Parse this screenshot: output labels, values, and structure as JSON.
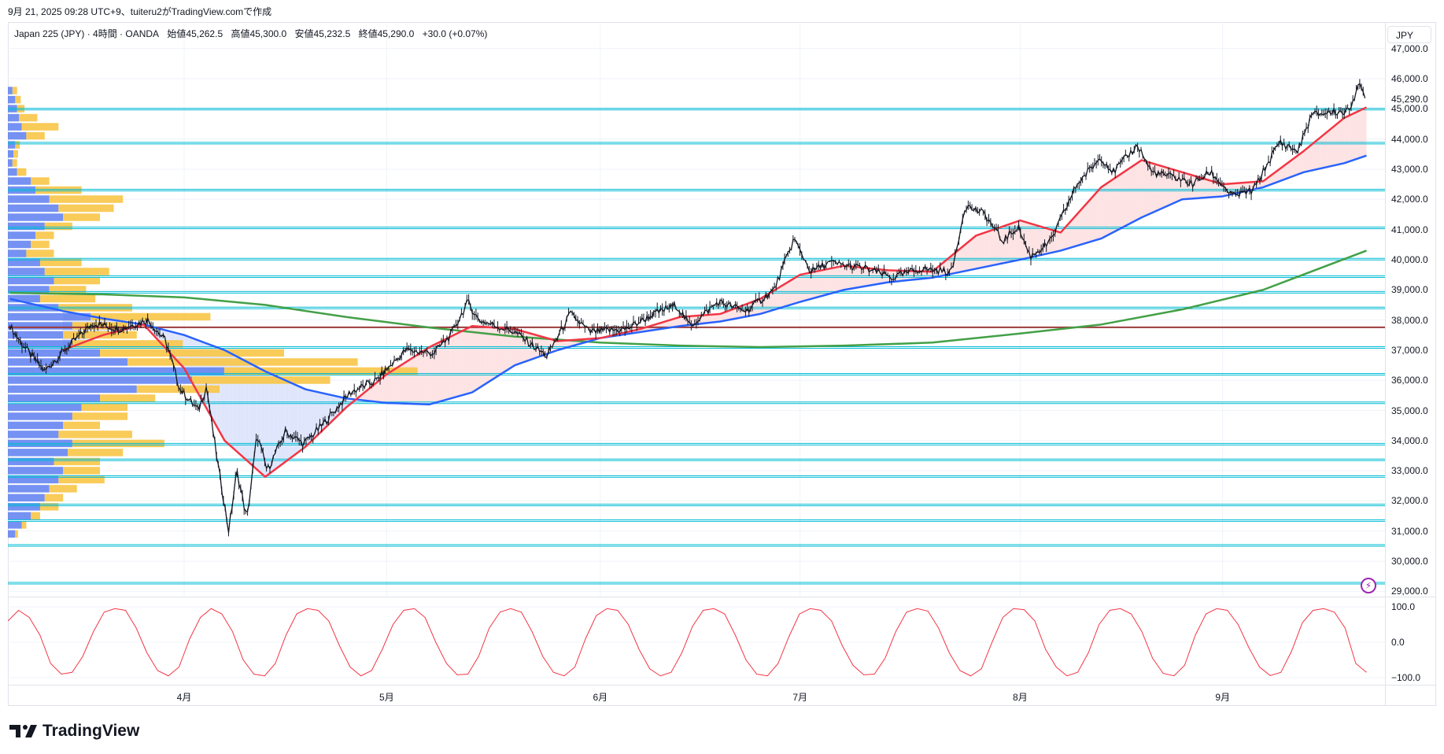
{
  "caption": "9月 21, 2025 09:28 UTC+9、tuiteru2がTradingView.comで作成",
  "legend": {
    "symbol": "Japan 225 (JPY) · 4時間 · OANDA",
    "open": "始値45,262.5",
    "high": "高値45,300.0",
    "low": "安値45,232.5",
    "close": "終値45,290.0",
    "change": "+30.0 (+0.07%)"
  },
  "currency_button": "JPY",
  "current_price_label": "45,290.0",
  "brand": "TradingView",
  "alert_icon": "lightning-icon",
  "colors": {
    "up_band": "#fde3e3",
    "down_band": "#dfe6fb",
    "ema_fast": "#f23645",
    "ma_mid": "#2962ff",
    "ma_slow": "#43a047",
    "level": "#00bcd4",
    "pivot": "#9c3b3b",
    "osc": "#f23645",
    "vp_blue": "#5d7ef0",
    "vp_yellow": "#f8c547"
  },
  "chart_data": [
    {
      "type": "line",
      "title": "Japan 225 (JPY) 4H",
      "price_axis": {
        "ticks": [
          47000,
          46000,
          45000,
          44000,
          43000,
          42000,
          41000,
          40000,
          39000,
          38000,
          37000,
          36000,
          35000,
          34000,
          33000,
          32000,
          31000,
          30000,
          29000
        ],
        "labels": [
          "47,000.0",
          "46,000.0",
          "45,000.0",
          "44,000.0",
          "43,000.0",
          "42,000.0",
          "41,000.0",
          "40,000.0",
          "39,000.0",
          "38,000.0",
          "37,000.0",
          "36,000.0",
          "35,000.0",
          "34,000.0",
          "33,000.0",
          "32,000.0",
          "31,000.0",
          "30,000.0",
          "29,000.0"
        ],
        "range": [
          29000,
          47000
        ]
      },
      "time_axis": {
        "months": [
          4,
          5,
          6,
          7,
          8,
          9
        ],
        "labels": [
          "4月",
          "5月",
          "6月",
          "7月",
          "8月",
          "9月"
        ]
      },
      "x_unit": "month (fractional)",
      "price": {
        "x": [
          3.14,
          3.2,
          3.31,
          3.41,
          3.55,
          3.68,
          3.82,
          3.91,
          3.98,
          4.07,
          4.11,
          4.16,
          4.22,
          4.26,
          4.31,
          4.36,
          4.41,
          4.5,
          4.59,
          4.68,
          4.82,
          4.95,
          5.09,
          5.22,
          5.3,
          5.38,
          5.43,
          5.6,
          5.75,
          5.86,
          5.95,
          6.13,
          6.27,
          6.38,
          6.45,
          6.59,
          6.73,
          6.87,
          6.97,
          7.05,
          7.13,
          7.3,
          7.42,
          7.55,
          7.69,
          7.75,
          7.84,
          7.92,
          7.99,
          8.05,
          8.15,
          8.28,
          8.4,
          8.46,
          8.58,
          8.65,
          8.78,
          8.85,
          8.94,
          9.05,
          9.15,
          9.28,
          9.37,
          9.44,
          9.55,
          9.62,
          9.67,
          9.71
        ],
        "y": [
          37800,
          37200,
          36300,
          37000,
          37900,
          37700,
          38000,
          37300,
          35700,
          35000,
          35800,
          33500,
          31000,
          33000,
          31400,
          34200,
          33000,
          34300,
          33900,
          34500,
          35600,
          36000,
          37000,
          36900,
          37500,
          38600,
          38000,
          37600,
          36800,
          38200,
          37600,
          37700,
          38200,
          38500,
          37800,
          38600,
          38300,
          39000,
          40700,
          39600,
          39900,
          39700,
          39400,
          39700,
          39600,
          41800,
          41500,
          40600,
          41100,
          40100,
          40600,
          42500,
          43400,
          42900,
          43800,
          42900,
          42700,
          42500,
          42900,
          42100,
          42300,
          43900,
          43600,
          44800,
          44900,
          44900,
          45800,
          45290
        ]
      },
      "ema_fast": {
        "x": [
          3.4,
          3.6,
          3.8,
          4.0,
          4.2,
          4.4,
          4.6,
          4.8,
          5.0,
          5.2,
          5.4,
          5.6,
          5.8,
          6.0,
          6.2,
          6.4,
          6.6,
          6.8,
          7.0,
          7.2,
          7.4,
          7.6,
          7.8,
          8.0,
          8.2,
          8.4,
          8.6,
          8.8,
          9.0,
          9.2,
          9.4,
          9.6,
          9.71
        ],
        "y": [
          37000,
          37500,
          37850,
          36400,
          34000,
          32800,
          33800,
          35100,
          36200,
          37100,
          37800,
          37700,
          37300,
          37400,
          37700,
          38100,
          38200,
          38700,
          39500,
          39800,
          39650,
          39600,
          40800,
          41300,
          40900,
          42400,
          43300,
          42900,
          42500,
          42600,
          43600,
          44700,
          45050
        ]
      },
      "ma_mid": {
        "x": [
          3.14,
          3.4,
          3.6,
          3.8,
          4.0,
          4.2,
          4.4,
          4.6,
          4.8,
          5.0,
          5.2,
          5.4,
          5.6,
          5.8,
          6.0,
          6.2,
          6.4,
          6.6,
          6.8,
          7.0,
          7.2,
          7.4,
          7.6,
          7.8,
          8.0,
          8.2,
          8.4,
          8.6,
          8.8,
          9.0,
          9.2,
          9.4,
          9.6,
          9.71
        ],
        "y": [
          38700,
          38300,
          38050,
          37850,
          37500,
          37000,
          36300,
          35700,
          35400,
          35250,
          35200,
          35600,
          36500,
          37000,
          37400,
          37600,
          37800,
          37950,
          38200,
          38600,
          39000,
          39250,
          39400,
          39700,
          40000,
          40300,
          40700,
          41400,
          42000,
          42100,
          42400,
          42900,
          43200,
          43450
        ]
      },
      "ma_slow": {
        "x": [
          3.14,
          3.6,
          4.0,
          4.4,
          4.8,
          5.2,
          5.6,
          6.0,
          6.4,
          6.8,
          7.2,
          7.6,
          8.0,
          8.4,
          8.8,
          9.2,
          9.71
        ],
        "y": [
          38900,
          38850,
          38750,
          38500,
          38100,
          37750,
          37450,
          37250,
          37150,
          37100,
          37150,
          37250,
          37550,
          37850,
          38350,
          39000,
          40300
        ]
      },
      "levels": [
        44993,
        43863,
        42306,
        41055,
        40017,
        39437,
        38918,
        38400,
        37087,
        36201,
        35255,
        33881,
        33363,
        32813,
        31867,
        31350,
        30524,
        29272
      ],
      "pivot_level": 37758,
      "volume_profile": {
        "start_price": 45600,
        "step": -300,
        "blue": [
          5,
          8,
          10,
          12,
          15,
          20,
          8,
          6,
          5,
          10,
          25,
          30,
          45,
          55,
          60,
          40,
          30,
          25,
          20,
          35,
          40,
          50,
          45,
          35,
          55,
          90,
          70,
          60,
          70,
          100,
          130,
          235,
          200,
          140,
          100,
          80,
          70,
          60,
          55,
          70,
          65,
          50,
          60,
          55,
          45,
          40,
          35,
          25,
          15,
          8
        ],
        "yellow": [
          5,
          6,
          8,
          20,
          40,
          20,
          5,
          5,
          5,
          10,
          20,
          50,
          80,
          60,
          40,
          30,
          20,
          20,
          30,
          45,
          70,
          50,
          40,
          60,
          80,
          130,
          60,
          80,
          120,
          200,
          250,
          210,
          150,
          90,
          60,
          50,
          60,
          40,
          80,
          100,
          60,
          50,
          40,
          50,
          30,
          20,
          20,
          10,
          5,
          3
        ]
      }
    },
    {
      "type": "line",
      "title": "Oscillator",
      "y_axis": {
        "ticks": [
          100,
          0,
          -100
        ],
        "labels": [
          "100.0",
          "0.0",
          "−100.0"
        ],
        "range": [
          -100,
          100
        ]
      },
      "values": [
        60,
        90,
        70,
        20,
        -60,
        -90,
        -85,
        -40,
        30,
        85,
        95,
        90,
        40,
        -30,
        -80,
        -95,
        -70,
        10,
        70,
        95,
        80,
        30,
        -50,
        -90,
        -95,
        -60,
        20,
        80,
        95,
        90,
        60,
        -10,
        -70,
        -95,
        -80,
        -20,
        50,
        90,
        95,
        70,
        0,
        -60,
        -92,
        -90,
        -40,
        40,
        85,
        95,
        85,
        30,
        -40,
        -85,
        -95,
        -70,
        10,
        75,
        95,
        90,
        50,
        -20,
        -75,
        -95,
        -85,
        -30,
        45,
        90,
        95,
        80,
        20,
        -50,
        -90,
        -95,
        -60,
        15,
        80,
        95,
        90,
        60,
        -10,
        -65,
        -92,
        -90,
        -45,
        30,
        85,
        95,
        88,
        40,
        -30,
        -80,
        -95,
        -75,
        0,
        70,
        95,
        92,
        60,
        -20,
        -70,
        -95,
        -85,
        -30,
        50,
        90,
        95,
        80,
        30,
        -45,
        -88,
        -95,
        -65,
        20,
        80,
        95,
        90,
        50,
        -15,
        -70,
        -94,
        -85,
        -25,
        55,
        90,
        95,
        85,
        40,
        -60,
        -85
      ]
    }
  ]
}
